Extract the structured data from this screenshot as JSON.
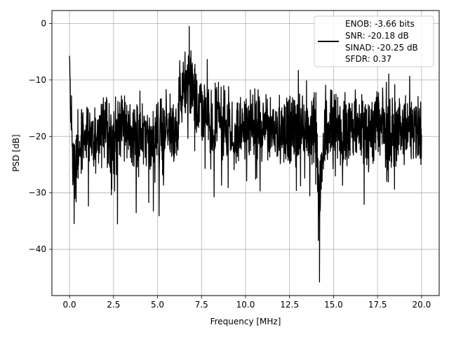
{
  "chart_data": {
    "type": "line",
    "title": "",
    "xlabel": "Frequency [MHz]",
    "ylabel": "PSD [dB]",
    "xlim": [
      -1.0,
      21.0
    ],
    "ylim": [
      -48.2,
      2.3
    ],
    "xticks": [
      0.0,
      2.5,
      5.0,
      7.5,
      10.0,
      12.5,
      15.0,
      17.5,
      20.0
    ],
    "xtick_labels": [
      "0.0",
      "2.5",
      "5.0",
      "7.5",
      "10.0",
      "12.5",
      "15.0",
      "17.5",
      "20.0"
    ],
    "yticks": [
      0,
      -10,
      -20,
      -30,
      -40
    ],
    "ytick_labels": [
      "0",
      "−10",
      "−20",
      "−30",
      "−40"
    ],
    "grid": true,
    "legend_position": "top-right",
    "series": [
      {
        "name": "",
        "color": "#000000",
        "description_points": {
          "x": [
            0.0,
            0.1,
            0.25,
            0.5,
            1.0,
            1.5,
            2.0,
            2.5,
            3.0,
            3.5,
            4.0,
            4.5,
            5.0,
            5.5,
            6.0,
            6.5,
            6.8,
            7.0,
            7.5,
            8.0,
            8.5,
            9.0,
            9.5,
            10.0,
            10.5,
            11.0,
            11.5,
            12.0,
            12.5,
            13.0,
            13.5,
            14.0,
            14.2,
            14.5,
            15.0,
            15.5,
            16.0,
            16.5,
            17.0,
            17.5,
            18.0,
            18.5,
            19.0,
            19.5,
            20.0
          ],
          "y": [
            -5,
            -21,
            -40,
            -26,
            -18,
            -22,
            -16,
            -25,
            -14,
            -22,
            -18,
            -24,
            -20,
            -16,
            -19,
            -9,
            -1,
            -12,
            -15,
            -22,
            -12,
            -18,
            -20,
            -17,
            -15,
            -19,
            -16,
            -18,
            -20,
            -15,
            -19,
            -17,
            -46,
            -18,
            -15,
            -20,
            -17,
            -16,
            -19,
            -14,
            -18,
            -20,
            -16,
            -17,
            -18
          ]
        },
        "min_marker": {
          "x": 14.2,
          "y": -45.8
        },
        "peak_marker": {
          "x": 6.8,
          "y": -0.5
        }
      }
    ],
    "legend_entries": [
      "ENOB: -3.66 bits",
      "SNR: -20.18 dB",
      "SINAD: -20.25 dB",
      "SFDR: 0.37"
    ]
  }
}
